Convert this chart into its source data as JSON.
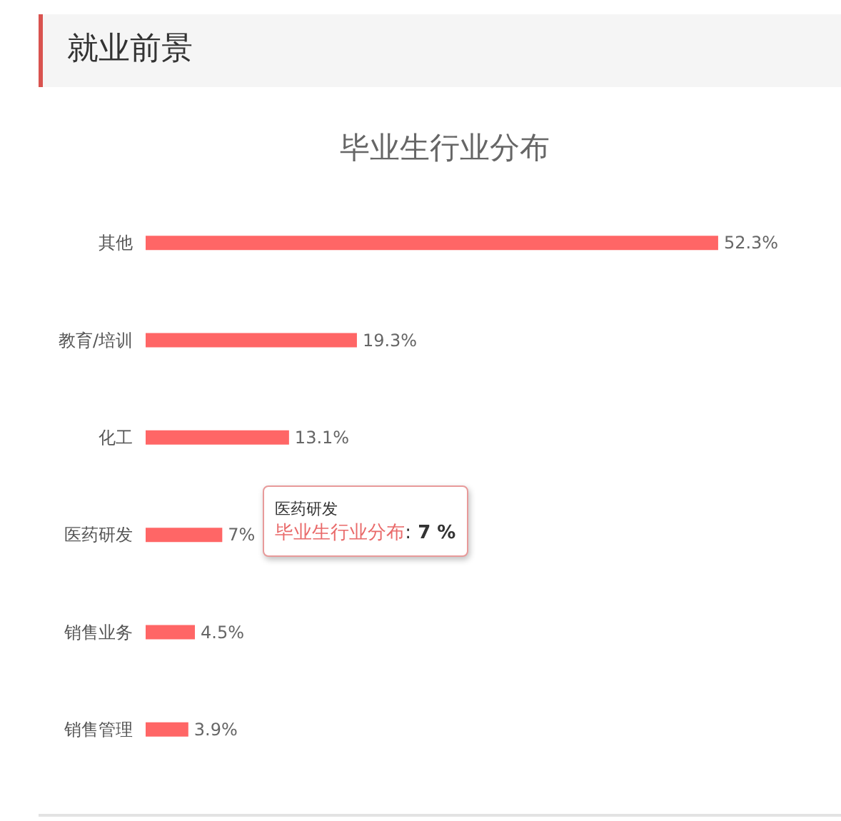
{
  "chart_data": {
    "type": "bar",
    "orientation": "horizontal",
    "title": "就业前景",
    "subtitle": "毕业生行业分布",
    "categories": [
      "其他",
      "教育/培训",
      "化工",
      "医药研发",
      "销售业务",
      "销售管理"
    ],
    "values": [
      52.3,
      19.3,
      13.1,
      7,
      4.5,
      3.9
    ],
    "value_labels": [
      "52.3%",
      "19.3%",
      "13.1%",
      "7%",
      "4.5%",
      "3.9%"
    ],
    "color": "#ff6666",
    "annotations": [
      "医药研发",
      {
        "text": "毕业生行业分布: 7 %",
        "x": 7,
        "y": "医药研发"
      }
    ]
  }
}
